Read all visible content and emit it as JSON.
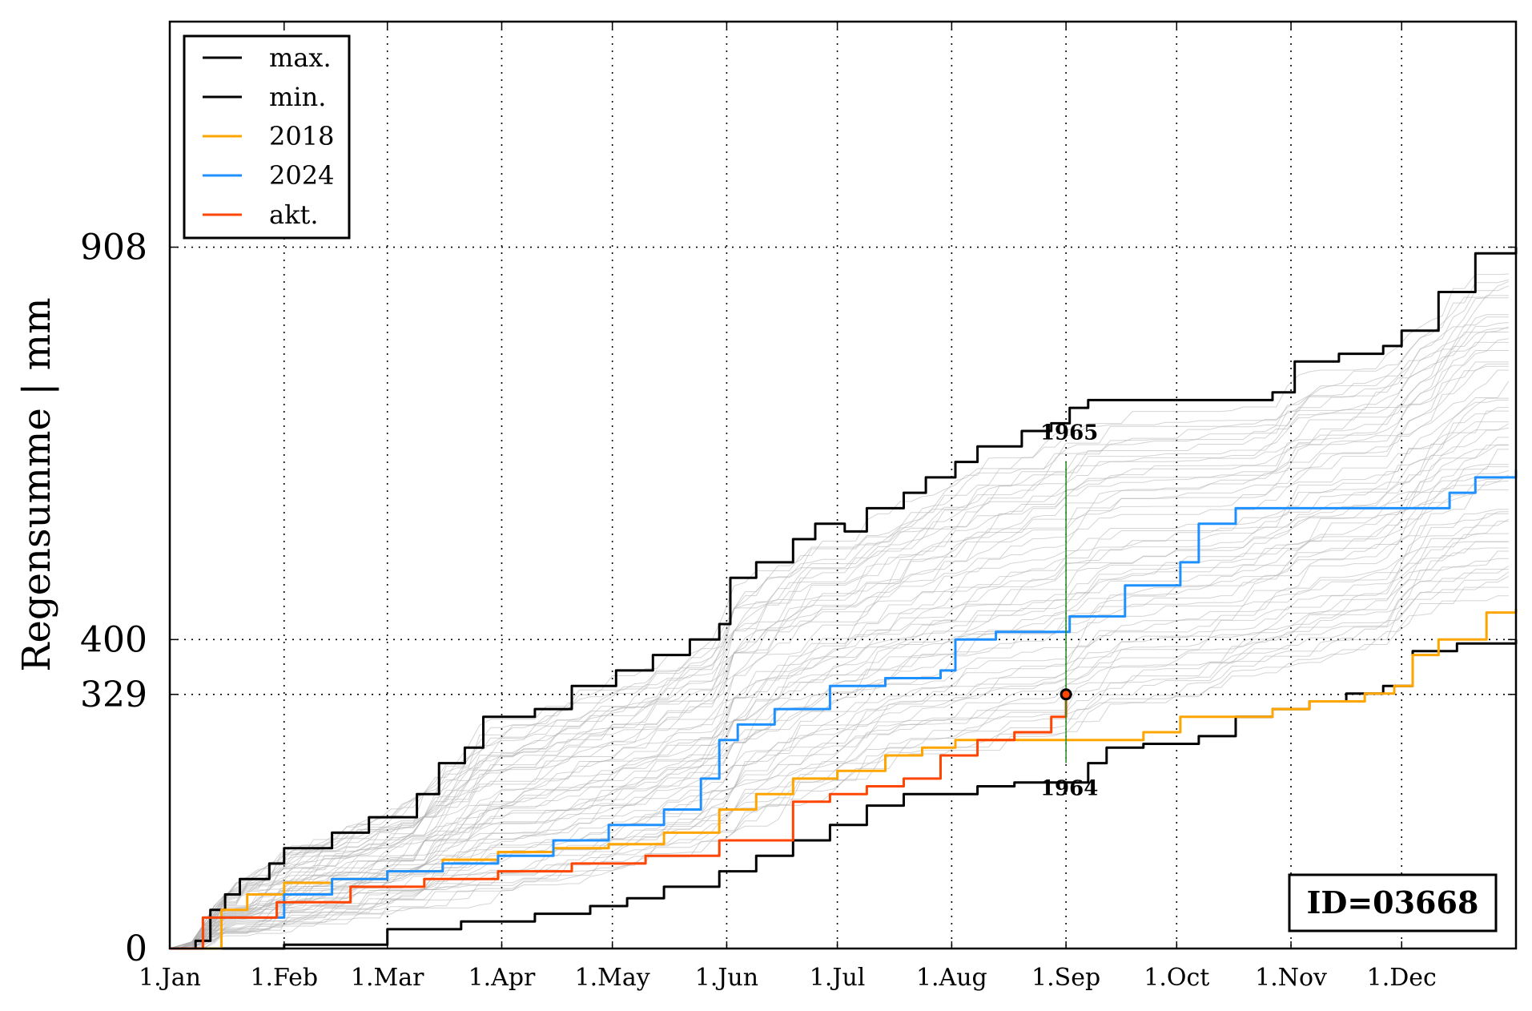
{
  "chart_data": {
    "type": "line",
    "ylabel": "Regensumme | mm",
    "x_axis": {
      "unit": "day of year",
      "range": [
        1,
        366
      ],
      "tick_positions": [
        1,
        32,
        60,
        91,
        121,
        152,
        182,
        213,
        244,
        274,
        305,
        335
      ],
      "tick_labels": [
        "1.Jan",
        "1.Feb",
        "1.Mar",
        "1.Apr",
        "1.May",
        "1.Jun",
        "1.Jul",
        "1.Aug",
        "1.Sep",
        "1.Oct",
        "1.Nov",
        "1.Dec"
      ]
    },
    "y_axis": {
      "range": [
        0,
        1200
      ],
      "tick_values": [
        0,
        329,
        400,
        908
      ],
      "tick_labels": [
        "0",
        "329",
        "400",
        "908"
      ]
    },
    "reference_lines": [
      908,
      400,
      329
    ],
    "grid": "dotted vertical lines at month starts",
    "legend": {
      "placement": "top-left",
      "entries": [
        {
          "label": "max.",
          "color": "#000000"
        },
        {
          "label": "min.",
          "color": "#000000"
        },
        {
          "label": "2018",
          "color": "#ffa500"
        },
        {
          "label": "2024",
          "color": "#1e90ff"
        },
        {
          "label": "akt.",
          "color": "#ff4500"
        }
      ]
    },
    "series": [
      {
        "name": "max.",
        "color": "#000000",
        "x": [
          1,
          8,
          12,
          16,
          20,
          28,
          32,
          45,
          55,
          68,
          74,
          81,
          86,
          92,
          100,
          110,
          122,
          132,
          142,
          150,
          153,
          160,
          170,
          176,
          184,
          190,
          200,
          206,
          214,
          220,
          232,
          240,
          245,
          250,
          260,
          268,
          280,
          290,
          300,
          306,
          318,
          330,
          335,
          345,
          355,
          366
        ],
        "y": [
          0,
          10,
          50,
          70,
          90,
          110,
          130,
          150,
          170,
          200,
          240,
          260,
          300,
          300,
          310,
          340,
          360,
          380,
          400,
          420,
          480,
          500,
          530,
          550,
          540,
          570,
          590,
          610,
          630,
          650,
          670,
          680,
          700,
          710,
          710,
          710,
          710,
          710,
          720,
          760,
          770,
          780,
          800,
          850,
          900,
          908
        ]
      },
      {
        "name": "min.",
        "color": "#000000",
        "x": [
          1,
          20,
          32,
          60,
          80,
          100,
          115,
          125,
          135,
          150,
          160,
          170,
          180,
          190,
          200,
          213,
          220,
          230,
          240,
          250,
          255,
          265,
          280,
          290,
          300,
          310,
          320,
          330,
          338,
          350,
          366
        ],
        "y": [
          0,
          0,
          5,
          25,
          35,
          45,
          55,
          65,
          80,
          100,
          120,
          140,
          160,
          185,
          200,
          200,
          210,
          215,
          215,
          240,
          260,
          265,
          275,
          300,
          310,
          320,
          330,
          340,
          385,
          395,
          400
        ]
      },
      {
        "name": "2018",
        "color": "#ffa500",
        "x": [
          1,
          15,
          22,
          32,
          45,
          60,
          75,
          90,
          105,
          120,
          135,
          150,
          160,
          170,
          182,
          195,
          205,
          214,
          225,
          240,
          250,
          265,
          275,
          290,
          300,
          310,
          325,
          333,
          338,
          345,
          358,
          366
        ],
        "y": [
          0,
          50,
          70,
          85,
          90,
          100,
          115,
          125,
          130,
          135,
          150,
          180,
          200,
          220,
          230,
          250,
          260,
          270,
          270,
          270,
          270,
          280,
          300,
          300,
          310,
          320,
          330,
          340,
          380,
          400,
          435,
          440
        ]
      },
      {
        "name": "2024",
        "color": "#1e90ff",
        "x": [
          1,
          10,
          32,
          45,
          60,
          75,
          90,
          105,
          120,
          135,
          145,
          150,
          155,
          165,
          180,
          195,
          210,
          214,
          225,
          245,
          260,
          275,
          280,
          290,
          305,
          320,
          335,
          348,
          355,
          366
        ],
        "y": [
          0,
          40,
          70,
          90,
          100,
          110,
          120,
          140,
          160,
          180,
          220,
          270,
          290,
          310,
          340,
          350,
          360,
          400,
          410,
          430,
          470,
          500,
          550,
          570,
          570,
          570,
          570,
          590,
          610,
          620
        ]
      },
      {
        "name": "akt.",
        "color": "#ff4500",
        "x": [
          1,
          10,
          30,
          50,
          70,
          90,
          110,
          130,
          150,
          170,
          180,
          190,
          200,
          210,
          220,
          230,
          240,
          244
        ],
        "y": [
          0,
          40,
          60,
          80,
          90,
          100,
          110,
          120,
          140,
          190,
          200,
          210,
          220,
          250,
          270,
          280,
          300,
          329
        ]
      }
    ],
    "marker": {
      "x": 244,
      "y": 329
    },
    "annotations": [
      {
        "text": "1965",
        "x": 244,
        "y": 631
      },
      {
        "text": "1964",
        "x": 244,
        "y": 240
      }
    ],
    "vertical_marker": {
      "x": 244,
      "y_from": 240,
      "y_to": 631,
      "color": "#228b22"
    },
    "id_box": "ID=03668"
  }
}
